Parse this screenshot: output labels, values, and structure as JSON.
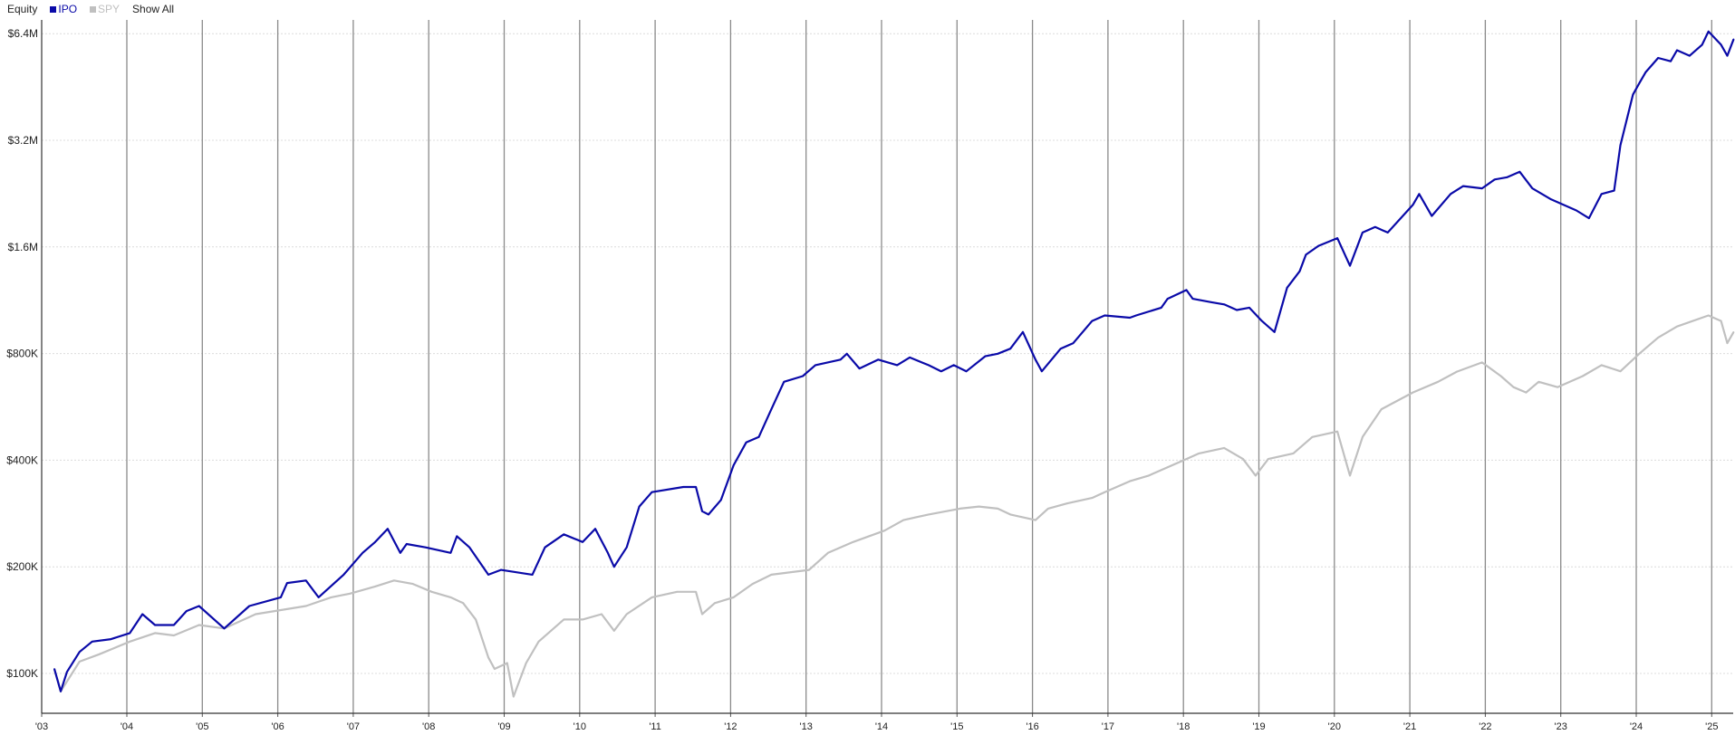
{
  "legend": {
    "title": "Equity",
    "show_all": "Show All"
  },
  "colors": {
    "IPO": "#0a0aa8",
    "SPY": "#c0c0c0"
  },
  "chart_data": {
    "type": "line",
    "title": "Equity",
    "y_scale": "log",
    "ylim": [
      80000,
      7000000
    ],
    "xlim": [
      "2002-11",
      "2025-04"
    ],
    "grid": {
      "vertical": true,
      "horizontal": true
    },
    "legend_placement": "top-left",
    "y_ticks": [
      {
        "value": 100000,
        "label": "$100K"
      },
      {
        "value": 200000,
        "label": "$200K"
      },
      {
        "value": 400000,
        "label": "$400K"
      },
      {
        "value": 800000,
        "label": "$800K"
      },
      {
        "value": 1600000,
        "label": "$1.6M"
      },
      {
        "value": 3200000,
        "label": "$3.2M"
      },
      {
        "value": 6400000,
        "label": "$6.4M"
      }
    ],
    "x_ticks": [
      {
        "year": 2003,
        "label": "'03"
      },
      {
        "year": 2004,
        "label": "'04"
      },
      {
        "year": 2005,
        "label": "'05"
      },
      {
        "year": 2006,
        "label": "'06"
      },
      {
        "year": 2007,
        "label": "'07"
      },
      {
        "year": 2008,
        "label": "'08"
      },
      {
        "year": 2009,
        "label": "'09"
      },
      {
        "year": 2010,
        "label": "'10"
      },
      {
        "year": 2011,
        "label": "'11"
      },
      {
        "year": 2012,
        "label": "'12"
      },
      {
        "year": 2013,
        "label": "'13"
      },
      {
        "year": 2014,
        "label": "'14"
      },
      {
        "year": 2015,
        "label": "'15"
      },
      {
        "year": 2016,
        "label": "'16"
      },
      {
        "year": 2017,
        "label": "'17"
      },
      {
        "year": 2018,
        "label": "'18"
      },
      {
        "year": 2019,
        "label": "'19"
      },
      {
        "year": 2020,
        "label": "'20"
      },
      {
        "year": 2021,
        "label": "'21"
      },
      {
        "year": 2022,
        "label": "'22"
      },
      {
        "year": 2023,
        "label": "'23"
      },
      {
        "year": 2024,
        "label": "'24"
      },
      {
        "year": 2025,
        "label": "'25"
      }
    ],
    "series": [
      {
        "name": "SPY",
        "color": "#c0c0c0",
        "points": [
          [
            "2003-01",
            103000
          ],
          [
            "2003-02",
            89000
          ],
          [
            "2003-05",
            108000
          ],
          [
            "2003-08",
            113000
          ],
          [
            "2004-01",
            123000
          ],
          [
            "2004-05",
            130000
          ],
          [
            "2004-08",
            128000
          ],
          [
            "2004-12",
            137000
          ],
          [
            "2005-04",
            134000
          ],
          [
            "2005-09",
            147000
          ],
          [
            "2006-01",
            151000
          ],
          [
            "2006-05",
            155000
          ],
          [
            "2006-09",
            164000
          ],
          [
            "2006-12",
            168000
          ],
          [
            "2007-04",
            176000
          ],
          [
            "2007-07",
            183000
          ],
          [
            "2007-10",
            179000
          ],
          [
            "2008-01",
            170000
          ],
          [
            "2008-04",
            164000
          ],
          [
            "2008-06",
            158000
          ],
          [
            "2008-08",
            142000
          ],
          [
            "2008-10",
            111000
          ],
          [
            "2008-11",
            103000
          ],
          [
            "2009-01",
            107000
          ],
          [
            "2009-02",
            86000
          ],
          [
            "2009-04",
            107000
          ],
          [
            "2009-06",
            123000
          ],
          [
            "2009-10",
            142000
          ],
          [
            "2010-01",
            142000
          ],
          [
            "2010-04",
            147000
          ],
          [
            "2010-06",
            132000
          ],
          [
            "2010-08",
            147000
          ],
          [
            "2010-12",
            164000
          ],
          [
            "2011-04",
            170000
          ],
          [
            "2011-07",
            170000
          ],
          [
            "2011-08",
            147000
          ],
          [
            "2011-10",
            158000
          ],
          [
            "2012-01",
            164000
          ],
          [
            "2012-04",
            179000
          ],
          [
            "2012-07",
            190000
          ],
          [
            "2013-01",
            196000
          ],
          [
            "2013-04",
            219000
          ],
          [
            "2013-08",
            235000
          ],
          [
            "2014-01",
            253000
          ],
          [
            "2014-04",
            271000
          ],
          [
            "2014-08",
            281000
          ],
          [
            "2015-01",
            292000
          ],
          [
            "2015-04",
            296000
          ],
          [
            "2015-07",
            292000
          ],
          [
            "2015-09",
            281000
          ],
          [
            "2016-01",
            271000
          ],
          [
            "2016-03",
            292000
          ],
          [
            "2016-06",
            302000
          ],
          [
            "2016-10",
            313000
          ],
          [
            "2016-12",
            325000
          ],
          [
            "2017-04",
            349000
          ],
          [
            "2017-07",
            362000
          ],
          [
            "2018-01",
            403000
          ],
          [
            "2018-03",
            418000
          ],
          [
            "2018-07",
            433000
          ],
          [
            "2018-10",
            403000
          ],
          [
            "2018-12",
            362000
          ],
          [
            "2019-02",
            403000
          ],
          [
            "2019-06",
            418000
          ],
          [
            "2019-09",
            465000
          ],
          [
            "2020-01",
            482000
          ],
          [
            "2020-03",
            362000
          ],
          [
            "2020-05",
            465000
          ],
          [
            "2020-08",
            557000
          ],
          [
            "2021-01",
            621000
          ],
          [
            "2021-05",
            666000
          ],
          [
            "2021-08",
            711000
          ],
          [
            "2021-12",
            755000
          ],
          [
            "2022-03",
            691000
          ],
          [
            "2022-05",
            643000
          ],
          [
            "2022-07",
            621000
          ],
          [
            "2022-09",
            666000
          ],
          [
            "2022-12",
            643000
          ],
          [
            "2023-04",
            691000
          ],
          [
            "2023-07",
            742000
          ],
          [
            "2023-10",
            713000
          ],
          [
            "2024-01",
            799000
          ],
          [
            "2024-04",
            888000
          ],
          [
            "2024-07",
            954000
          ],
          [
            "2024-12",
            1025000
          ],
          [
            "2025-02",
            989000
          ],
          [
            "2025-03",
            856000
          ],
          [
            "2025-04",
            920000
          ]
        ]
      },
      {
        "name": "IPO",
        "color": "#0a0aa8",
        "points": [
          [
            "2003-01",
            103000
          ],
          [
            "2003-02",
            89000
          ],
          [
            "2003-03",
            101000
          ],
          [
            "2003-05",
            115000
          ],
          [
            "2003-07",
            123000
          ],
          [
            "2003-10",
            125000
          ],
          [
            "2004-01",
            130000
          ],
          [
            "2004-03",
            147000
          ],
          [
            "2004-05",
            137000
          ],
          [
            "2004-08",
            137000
          ],
          [
            "2004-10",
            150000
          ],
          [
            "2004-12",
            155000
          ],
          [
            "2005-04",
            134000
          ],
          [
            "2005-08",
            155000
          ],
          [
            "2006-01",
            164000
          ],
          [
            "2006-02",
            180000
          ],
          [
            "2006-05",
            183000
          ],
          [
            "2006-07",
            164000
          ],
          [
            "2006-11",
            190000
          ],
          [
            "2007-02",
            219000
          ],
          [
            "2007-04",
            235000
          ],
          [
            "2007-06",
            256000
          ],
          [
            "2007-08",
            219000
          ],
          [
            "2007-09",
            232000
          ],
          [
            "2007-12",
            227000
          ],
          [
            "2008-04",
            219000
          ],
          [
            "2008-05",
            244000
          ],
          [
            "2008-07",
            227000
          ],
          [
            "2008-10",
            190000
          ],
          [
            "2008-12",
            196000
          ],
          [
            "2009-05",
            190000
          ],
          [
            "2009-07",
            227000
          ],
          [
            "2009-10",
            247000
          ],
          [
            "2010-01",
            235000
          ],
          [
            "2010-03",
            256000
          ],
          [
            "2010-05",
            219000
          ],
          [
            "2010-06",
            200000
          ],
          [
            "2010-08",
            227000
          ],
          [
            "2010-10",
            296000
          ],
          [
            "2010-12",
            325000
          ],
          [
            "2011-05",
            336000
          ],
          [
            "2011-07",
            336000
          ],
          [
            "2011-08",
            287000
          ],
          [
            "2011-09",
            281000
          ],
          [
            "2011-11",
            309000
          ],
          [
            "2012-01",
            387000
          ],
          [
            "2012-03",
            449000
          ],
          [
            "2012-05",
            465000
          ],
          [
            "2012-07",
            557000
          ],
          [
            "2012-09",
            666000
          ],
          [
            "2012-12",
            691000
          ],
          [
            "2013-02",
            742000
          ],
          [
            "2013-06",
            769000
          ],
          [
            "2013-07",
            799000
          ],
          [
            "2013-09",
            726000
          ],
          [
            "2013-12",
            769000
          ],
          [
            "2014-03",
            742000
          ],
          [
            "2014-05",
            780000
          ],
          [
            "2014-08",
            742000
          ],
          [
            "2014-10",
            713000
          ],
          [
            "2014-12",
            742000
          ],
          [
            "2015-02",
            713000
          ],
          [
            "2015-05",
            786000
          ],
          [
            "2015-07",
            799000
          ],
          [
            "2015-09",
            826000
          ],
          [
            "2015-11",
            920000
          ],
          [
            "2016-01",
            769000
          ],
          [
            "2016-02",
            713000
          ],
          [
            "2016-05",
            826000
          ],
          [
            "2016-07",
            856000
          ],
          [
            "2016-10",
            989000
          ],
          [
            "2016-12",
            1025000
          ],
          [
            "2017-04",
            1010000
          ],
          [
            "2017-05",
            1025000
          ],
          [
            "2017-09",
            1078000
          ],
          [
            "2017-10",
            1142000
          ],
          [
            "2018-01",
            1209000
          ],
          [
            "2018-02",
            1142000
          ],
          [
            "2018-05",
            1117000
          ],
          [
            "2018-07",
            1101000
          ],
          [
            "2018-09",
            1062000
          ],
          [
            "2018-11",
            1078000
          ],
          [
            "2019-01",
            989000
          ],
          [
            "2019-03",
            920000
          ],
          [
            "2019-05",
            1227000
          ],
          [
            "2019-07",
            1366000
          ],
          [
            "2019-08",
            1521000
          ],
          [
            "2019-10",
            1611000
          ],
          [
            "2020-01",
            1694000
          ],
          [
            "2020-03",
            1416000
          ],
          [
            "2020-05",
            1757000
          ],
          [
            "2020-07",
            1821000
          ],
          [
            "2020-09",
            1757000
          ],
          [
            "2021-01",
            2102000
          ],
          [
            "2021-02",
            2258000
          ],
          [
            "2021-04",
            1957000
          ],
          [
            "2021-07",
            2258000
          ],
          [
            "2021-09",
            2376000
          ],
          [
            "2021-12",
            2341000
          ],
          [
            "2022-02",
            2480000
          ],
          [
            "2022-04",
            2517000
          ],
          [
            "2022-06",
            2608000
          ],
          [
            "2022-08",
            2341000
          ],
          [
            "2022-11",
            2179000
          ],
          [
            "2023-03",
            2028000
          ],
          [
            "2023-05",
            1928000
          ],
          [
            "2023-07",
            2258000
          ],
          [
            "2023-09",
            2307000
          ],
          [
            "2023-10",
            3098000
          ],
          [
            "2023-12",
            4311000
          ],
          [
            "2024-01",
            4634000
          ],
          [
            "2024-02",
            4977000
          ],
          [
            "2024-04",
            5465000
          ],
          [
            "2024-06",
            5348000
          ],
          [
            "2024-07",
            5748000
          ],
          [
            "2024-09",
            5545000
          ],
          [
            "2024-11",
            5955000
          ],
          [
            "2024-12",
            6492000
          ],
          [
            "2025-02",
            5955000
          ],
          [
            "2025-03",
            5545000
          ],
          [
            "2025-04",
            6175000
          ]
        ]
      }
    ]
  }
}
